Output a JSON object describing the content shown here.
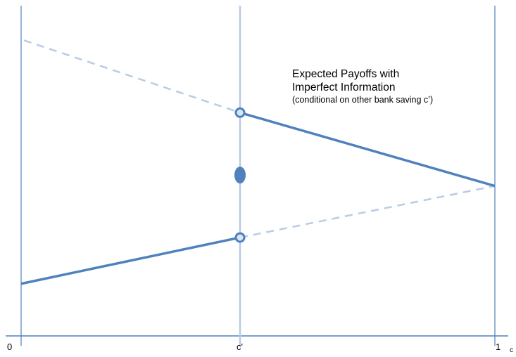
{
  "colors": {
    "axis": "#4f81bd",
    "guide": "#b8cce4",
    "payoff": "#4f81bd",
    "dashed": "#b8cce4",
    "marker_fill": "#4f81bd",
    "marker_ring_inner": "#dbe5f1"
  },
  "axis": {
    "x_ticks": [
      {
        "id": "zero",
        "label": "0"
      },
      {
        "id": "c-prime",
        "label": "c'"
      },
      {
        "id": "one",
        "label": "1"
      },
      {
        "id": "c",
        "label": "c"
      }
    ]
  },
  "annotation": {
    "line1": "Expected Payoffs with",
    "line2": "Imperfect Information",
    "line3": "(conditional on other bank saving c’)"
  },
  "payoffs": {
    "upper_dashed_start": 0.895,
    "upper_kink": 0.676,
    "meeting_point": 0.454,
    "lower_start": 0.158,
    "lower_kink": 0.298,
    "middle_dot": 0.487
  }
}
